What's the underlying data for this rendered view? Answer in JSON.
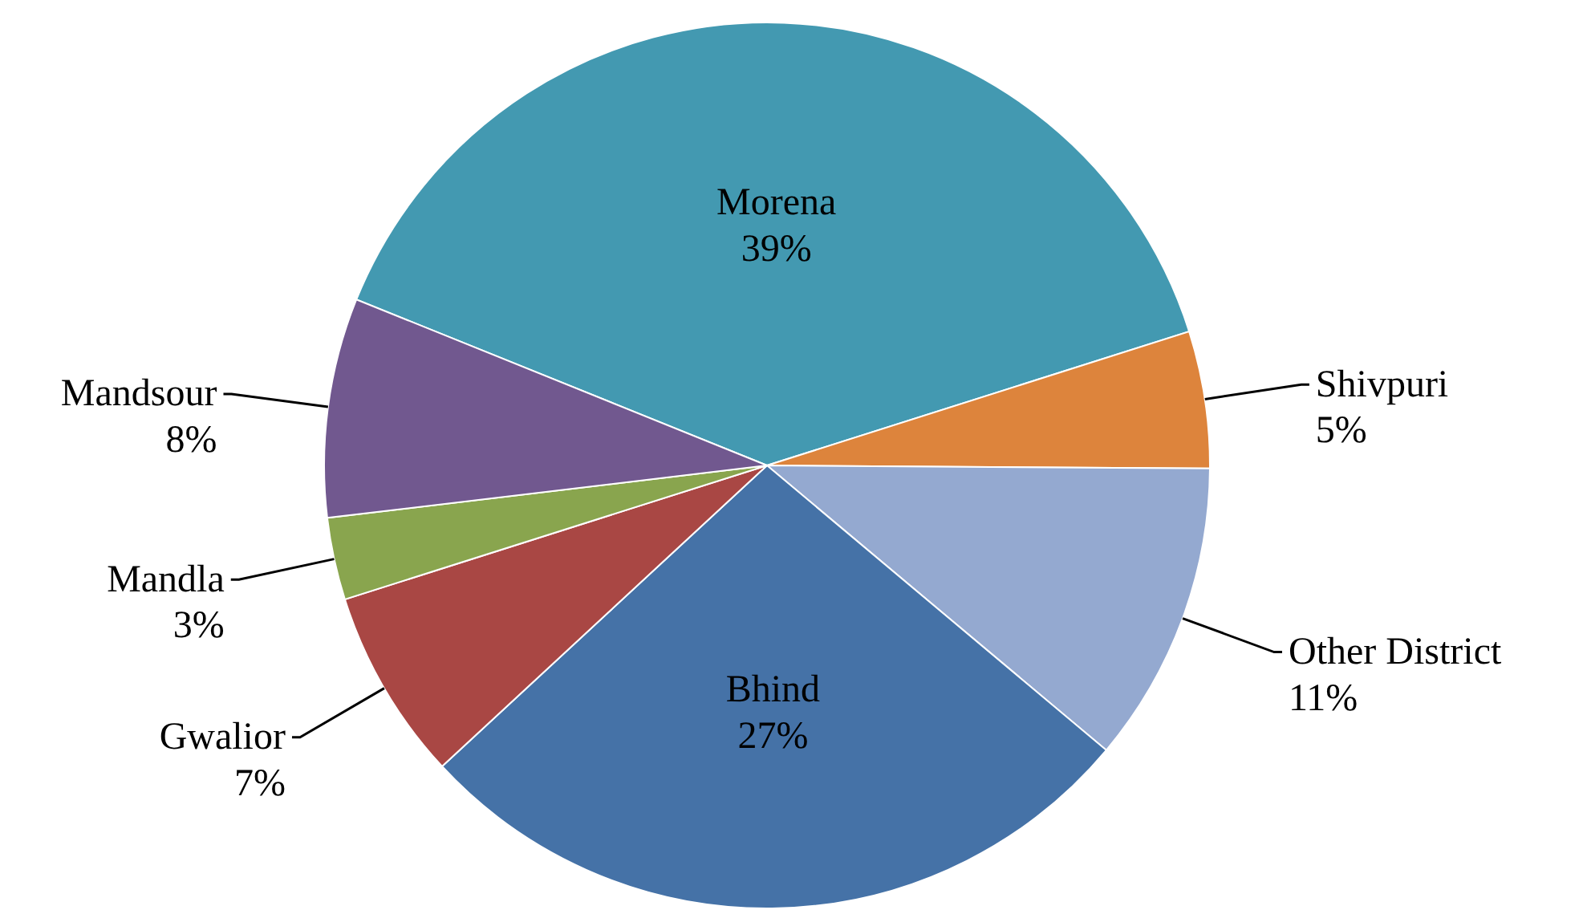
{
  "chart_data": {
    "type": "pie",
    "categories": [
      "Morena",
      "Shivpuri",
      "Other District",
      "Bhind",
      "Gwalior",
      "Mandla",
      "Mandsour"
    ],
    "values": [
      39,
      5,
      11,
      27,
      7,
      3,
      8
    ],
    "colors": [
      "#4399b1",
      "#dd843c",
      "#94a9d0",
      "#4572a7",
      "#a94744",
      "#89a54e",
      "#71588f"
    ],
    "value_labels": [
      "39%",
      "5%",
      "11%",
      "27%",
      "7%",
      "3%",
      "8%"
    ]
  }
}
